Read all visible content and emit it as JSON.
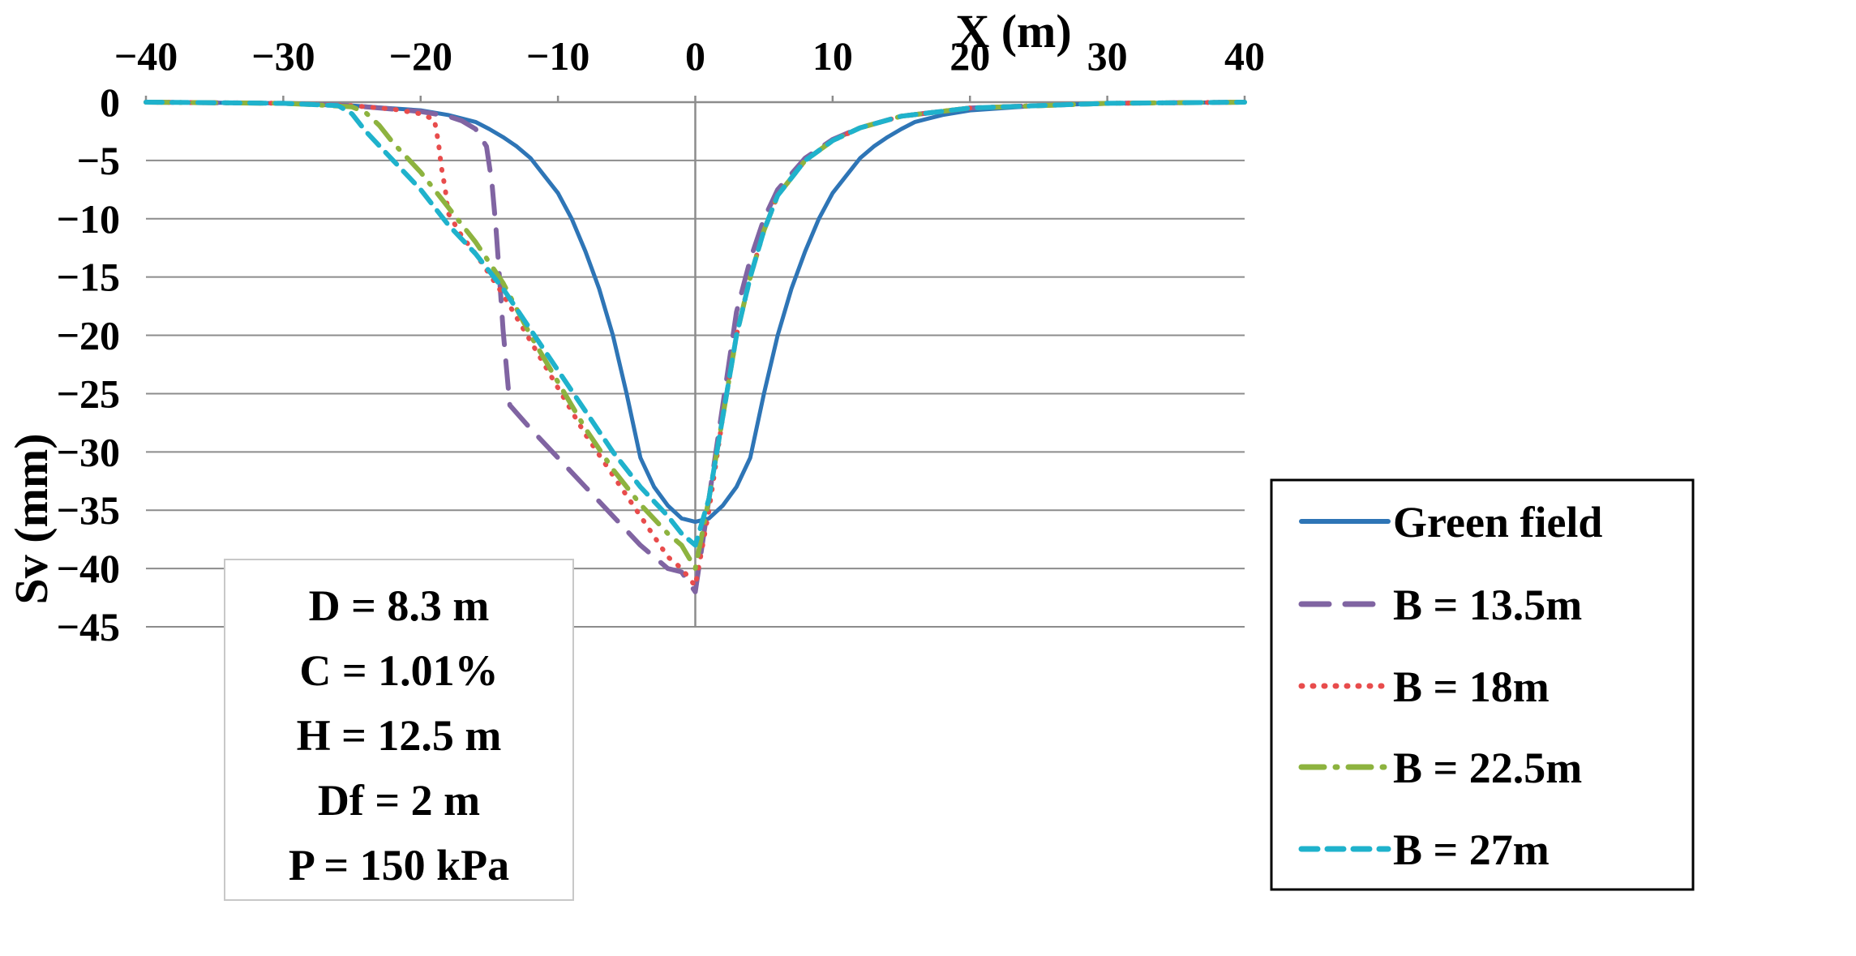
{
  "chart_data": {
    "type": "line",
    "title": "",
    "xlabel": "X (m)",
    "ylabel": "Sv (mm)",
    "xlim": [
      -40,
      40
    ],
    "ylim": [
      -45,
      0
    ],
    "xticks": [
      -40,
      -30,
      -20,
      -10,
      0,
      10,
      20,
      30,
      40
    ],
    "yticks": [
      0,
      -5,
      -10,
      -15,
      -20,
      -25,
      -30,
      -35,
      -40,
      -45
    ],
    "xtick_labels": [
      "−40",
      "−30",
      "−20",
      "−10",
      "0",
      "10",
      "20",
      "30",
      "40"
    ],
    "ytick_labels": [
      "0",
      "−5",
      "−10",
      "−15",
      "−20",
      "−25",
      "−30",
      "−35",
      "−40",
      "−45"
    ],
    "grid": "horizontal",
    "legend_position": "bottom-right",
    "annotation_box": {
      "position": "bottom-left",
      "lines": [
        "D = 8.3 m",
        "C = 1.01%",
        "H = 12.5 m",
        "Df = 2 m",
        "P = 150 kPa"
      ]
    },
    "series": [
      {
        "name": "Green field",
        "color": "#2E75B6",
        "style": "solid",
        "points": [
          [
            -40,
            0
          ],
          [
            -30,
            -0.1
          ],
          [
            -25,
            -0.3
          ],
          [
            -20,
            -0.7
          ],
          [
            -18,
            -1.1
          ],
          [
            -16,
            -1.7
          ],
          [
            -15,
            -2.3
          ],
          [
            -14,
            -3.0
          ],
          [
            -13,
            -3.8
          ],
          [
            -12,
            -4.8
          ],
          [
            -11,
            -6.3
          ],
          [
            -10,
            -7.8
          ],
          [
            -9,
            -10.0
          ],
          [
            -8,
            -12.8
          ],
          [
            -7,
            -16.0
          ],
          [
            -6,
            -20.0
          ],
          [
            -5,
            -25.0
          ],
          [
            -4,
            -30.5
          ],
          [
            -3,
            -33.0
          ],
          [
            -2,
            -34.6
          ],
          [
            -1,
            -35.7
          ],
          [
            0,
            -36.0
          ],
          [
            1,
            -35.7
          ],
          [
            2,
            -34.6
          ],
          [
            3,
            -33.0
          ],
          [
            4,
            -30.5
          ],
          [
            5,
            -25.0
          ],
          [
            6,
            -20.0
          ],
          [
            7,
            -16.0
          ],
          [
            8,
            -12.8
          ],
          [
            9,
            -10.0
          ],
          [
            10,
            -7.8
          ],
          [
            11,
            -6.3
          ],
          [
            12,
            -4.8
          ],
          [
            13,
            -3.8
          ],
          [
            14,
            -3.0
          ],
          [
            15,
            -2.3
          ],
          [
            16,
            -1.7
          ],
          [
            18,
            -1.1
          ],
          [
            20,
            -0.7
          ],
          [
            25,
            -0.3
          ],
          [
            30,
            -0.1
          ],
          [
            40,
            0
          ]
        ]
      },
      {
        "name": "B = 13.5m",
        "color": "#8064A2",
        "style": "long-dash",
        "points": [
          [
            -40,
            0
          ],
          [
            -30,
            -0.1
          ],
          [
            -25,
            -0.3
          ],
          [
            -20,
            -0.8
          ],
          [
            -18,
            -1.2
          ],
          [
            -17,
            -1.6
          ],
          [
            -16,
            -2.3
          ],
          [
            -15.2,
            -3.8
          ],
          [
            -14.8,
            -7.0
          ],
          [
            -14.5,
            -11.0
          ],
          [
            -14.2,
            -16.0
          ],
          [
            -14,
            -19.5
          ],
          [
            -13.7,
            -23.5
          ],
          [
            -13.5,
            -26.0
          ],
          [
            -12,
            -28.0
          ],
          [
            -10,
            -30.5
          ],
          [
            -8,
            -33.0
          ],
          [
            -6,
            -35.5
          ],
          [
            -4,
            -38.0
          ],
          [
            -2,
            -40.0
          ],
          [
            -1,
            -40.3
          ],
          [
            0,
            -42.0
          ],
          [
            0.5,
            -38.0
          ],
          [
            1,
            -34.0
          ],
          [
            2,
            -26.0
          ],
          [
            3,
            -18.0
          ],
          [
            4,
            -13.5
          ],
          [
            5,
            -10.0
          ],
          [
            6,
            -7.5
          ],
          [
            8,
            -4.8
          ],
          [
            10,
            -3.2
          ],
          [
            12,
            -2.2
          ],
          [
            15,
            -1.2
          ],
          [
            20,
            -0.5
          ],
          [
            30,
            -0.1
          ],
          [
            40,
            0
          ]
        ]
      },
      {
        "name": "B = 18m",
        "color": "#E84C4C",
        "style": "dotted",
        "points": [
          [
            -40,
            0
          ],
          [
            -30,
            -0.1
          ],
          [
            -25,
            -0.3
          ],
          [
            -22,
            -0.6
          ],
          [
            -20,
            -1.0
          ],
          [
            -19,
            -1.5
          ],
          [
            -18.7,
            -3.5
          ],
          [
            -18.5,
            -5.5
          ],
          [
            -18.2,
            -7.5
          ],
          [
            -18,
            -9.5
          ],
          [
            -17,
            -11.5
          ],
          [
            -16,
            -13.0
          ],
          [
            -14,
            -16.5
          ],
          [
            -12,
            -20.5
          ],
          [
            -10,
            -24.5
          ],
          [
            -8,
            -28.5
          ],
          [
            -6,
            -32.0
          ],
          [
            -4,
            -35.5
          ],
          [
            -2,
            -39.0
          ],
          [
            -1,
            -40.0
          ],
          [
            0,
            -41.5
          ],
          [
            1,
            -35.0
          ],
          [
            2,
            -27.0
          ],
          [
            3,
            -20.0
          ],
          [
            4,
            -15.0
          ],
          [
            5,
            -11.0
          ],
          [
            6,
            -8.0
          ],
          [
            8,
            -5.0
          ],
          [
            10,
            -3.3
          ],
          [
            12,
            -2.2
          ],
          [
            15,
            -1.2
          ],
          [
            20,
            -0.5
          ],
          [
            30,
            -0.1
          ],
          [
            40,
            0
          ]
        ]
      },
      {
        "name": "B = 22.5m",
        "color": "#8DB33F",
        "style": "dash-dot",
        "points": [
          [
            -40,
            0
          ],
          [
            -30,
            -0.1
          ],
          [
            -28,
            -0.2
          ],
          [
            -25,
            -0.4
          ],
          [
            -24,
            -0.9
          ],
          [
            -23,
            -2.0
          ],
          [
            -22,
            -3.5
          ],
          [
            -20,
            -6.0
          ],
          [
            -18,
            -9.0
          ],
          [
            -16,
            -12.0
          ],
          [
            -14,
            -15.5
          ],
          [
            -12,
            -20.0
          ],
          [
            -10,
            -24.0
          ],
          [
            -8,
            -28.0
          ],
          [
            -6,
            -31.5
          ],
          [
            -4,
            -34.5
          ],
          [
            -2,
            -37.0
          ],
          [
            -1,
            -38.0
          ],
          [
            0,
            -40.0
          ],
          [
            1,
            -34.0
          ],
          [
            2,
            -27.0
          ],
          [
            3,
            -20.0
          ],
          [
            4,
            -15.0
          ],
          [
            5,
            -11.0
          ],
          [
            6,
            -8.0
          ],
          [
            8,
            -5.0
          ],
          [
            10,
            -3.3
          ],
          [
            12,
            -2.2
          ],
          [
            15,
            -1.2
          ],
          [
            20,
            -0.5
          ],
          [
            30,
            -0.1
          ],
          [
            40,
            0
          ]
        ]
      },
      {
        "name": "B = 27m",
        "color": "#1FB2CC",
        "style": "short-dash",
        "points": [
          [
            -40,
            0
          ],
          [
            -30,
            -0.1
          ],
          [
            -26,
            -0.3
          ],
          [
            -25,
            -1.0
          ],
          [
            -24,
            -2.5
          ],
          [
            -22,
            -5.0
          ],
          [
            -20,
            -7.5
          ],
          [
            -18,
            -10.5
          ],
          [
            -16,
            -13.0
          ],
          [
            -14,
            -16.0
          ],
          [
            -12,
            -19.5
          ],
          [
            -10,
            -23.0
          ],
          [
            -8,
            -26.5
          ],
          [
            -6,
            -30.0
          ],
          [
            -4,
            -33.0
          ],
          [
            -2,
            -35.5
          ],
          [
            -1,
            -37.0
          ],
          [
            0,
            -38.0
          ],
          [
            1,
            -34.0
          ],
          [
            2,
            -27.0
          ],
          [
            3,
            -20.0
          ],
          [
            4,
            -15.0
          ],
          [
            5,
            -11.0
          ],
          [
            6,
            -8.0
          ],
          [
            8,
            -5.0
          ],
          [
            10,
            -3.3
          ],
          [
            12,
            -2.2
          ],
          [
            15,
            -1.2
          ],
          [
            20,
            -0.5
          ],
          [
            30,
            -0.1
          ],
          [
            40,
            0
          ]
        ]
      }
    ]
  }
}
